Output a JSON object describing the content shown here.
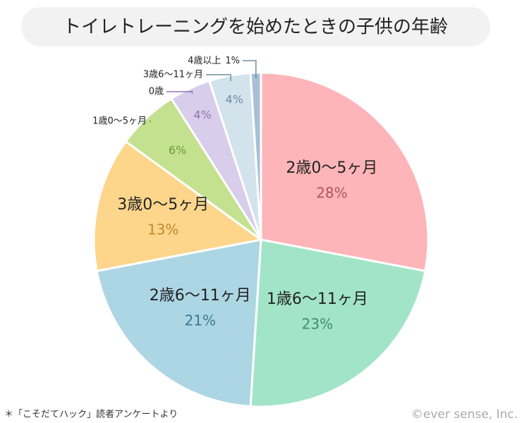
{
  "chart_data": {
    "type": "pie",
    "title": "トイレトレーニングを始めたときの子供の年齢",
    "categories": [
      "2歳0〜5ヶ月",
      "1歳6〜11ヶ月",
      "2歳6〜11ヶ月",
      "3歳0〜5ヶ月",
      "1歳0〜5ヶ月",
      "0歳",
      "3歳6〜11ヶ月",
      "4歳以上"
    ],
    "values": [
      28,
      23,
      21,
      13,
      6,
      4,
      4,
      1
    ],
    "value_labels": [
      "28%",
      "23%",
      "21%",
      "13%",
      "6%",
      "4%",
      "4%",
      "1%"
    ],
    "colors": [
      "#fdb5b9",
      "#a2e4c8",
      "#acd6e4",
      "#fdd68b",
      "#c3e18f",
      "#d8cdea",
      "#d3e3ec",
      "#a8bfd6"
    ],
    "label_colors": [
      "#b0555f",
      "#3e8f6c",
      "#3b7893",
      "#c2882a",
      "#6c9a3d",
      "#8e75b3",
      "#6d8ea0",
      "#6d8ea0"
    ],
    "footnote": "＊「こそだてハック」読者アンケートより",
    "copyright": "©ever sense, Inc."
  }
}
